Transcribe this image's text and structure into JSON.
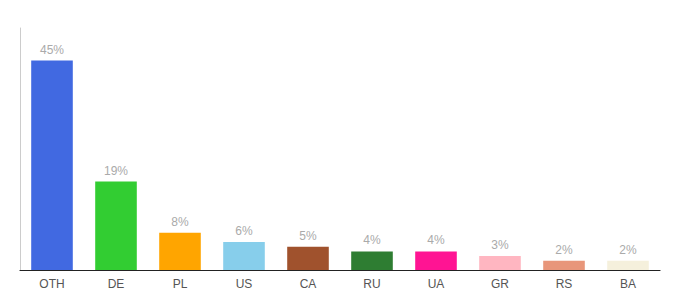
{
  "chart_data": {
    "type": "bar",
    "categories": [
      "OTH",
      "DE",
      "PL",
      "US",
      "CA",
      "RU",
      "UA",
      "GR",
      "RS",
      "BA"
    ],
    "values": [
      45,
      19,
      8,
      6,
      5,
      4,
      4,
      3,
      2,
      2
    ],
    "value_labels": [
      "45%",
      "19%",
      "8%",
      "6%",
      "5%",
      "4%",
      "4%",
      "3%",
      "2%",
      "2%"
    ],
    "colors": [
      "#4169E1",
      "#32CD32",
      "#FFA500",
      "#87CEEB",
      "#A0522D",
      "#2E7D32",
      "#FF1493",
      "#FFB6C1",
      "#E8967A",
      "#F5F0DC"
    ],
    "ylim": [
      0,
      52
    ],
    "data_labels": true,
    "tick_labels": "x",
    "grid": false
  }
}
